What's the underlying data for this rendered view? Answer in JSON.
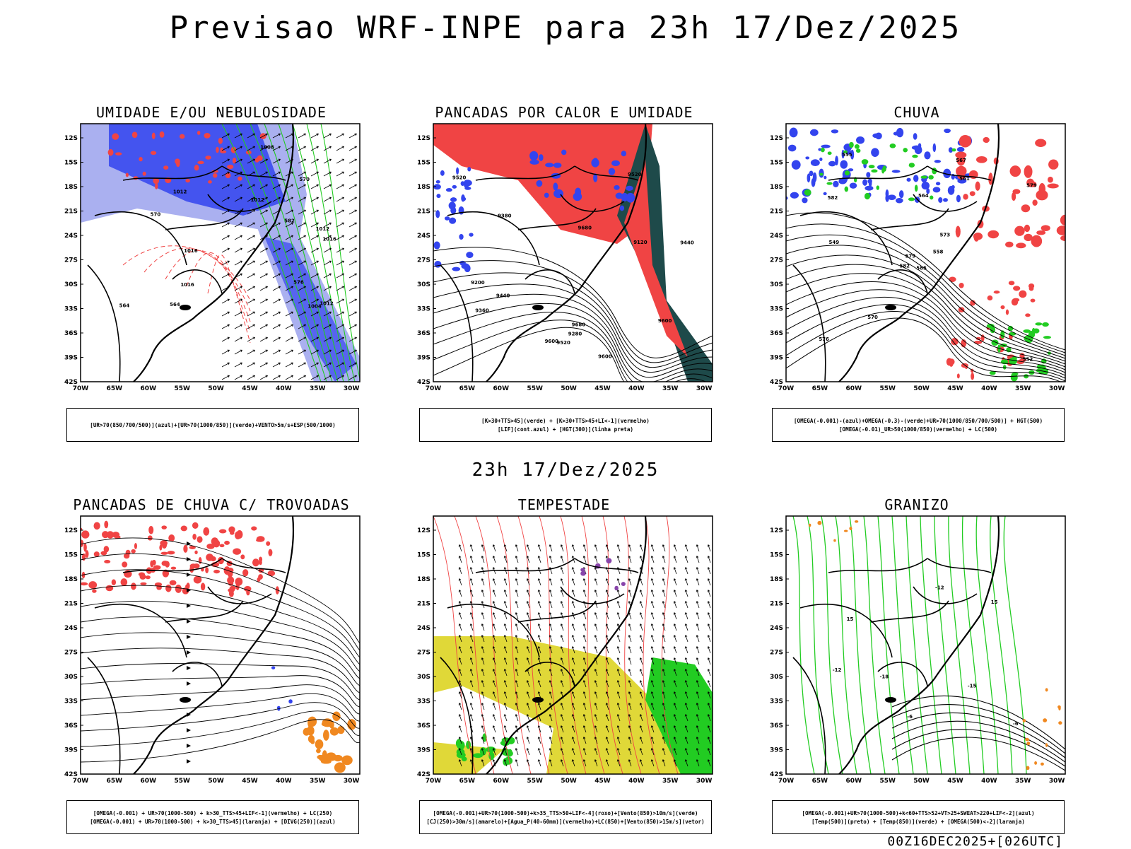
{
  "header": {
    "title": "Previsao WRF-INPE  para 23h 17/Dez/2025"
  },
  "middle_label": "23h 17/Dez/2025",
  "footer": {
    "stamp": "00Z16DEC2025+[026UTC]"
  },
  "axes": {
    "lat_labels": [
      "12S",
      "15S",
      "18S",
      "21S",
      "24S",
      "27S",
      "30S",
      "33S",
      "36S",
      "39S",
      "42S"
    ],
    "lon_labels": [
      "70W",
      "65W",
      "60W",
      "55W",
      "50W",
      "45W",
      "40W",
      "35W",
      "30W"
    ]
  },
  "colors": {
    "blue": "#3344ee",
    "light_blue": "#aab0f0",
    "green": "#22cc22",
    "red": "#f04444",
    "dark_teal": "#1e4a4a",
    "yellow": "#e0d838",
    "orange": "#f08820",
    "purple": "#8844aa"
  },
  "panels": [
    {
      "title": "UMIDADE E/OU NEBULOSIDADE",
      "caption": [
        "[UR>70(850/700/500)](azul)+[UR>70(1000/850)](verde)+VENTO>5m/s+ESP(500/1000)"
      ],
      "labels": [
        "1012",
        "1012",
        "1012",
        "1016",
        "1016",
        "1012",
        "1016",
        "1008",
        "1004",
        "570",
        "570",
        "576",
        "582",
        "564",
        "564"
      ]
    },
    {
      "title": "PANCADAS POR CALOR E UMIDADE",
      "caption": [
        "[K>30+TTS>45](verde) + [K>30+TTS>45+LI<-1](vermelho)",
        "[LIF](cont.azul) + [HGT(300)](linha preta)"
      ],
      "labels": [
        "9600",
        "9680",
        "9680",
        "9520",
        "9440",
        "9360",
        "9280",
        "9200",
        "9120",
        "9380",
        "9440",
        "9600",
        "9520",
        "9600",
        "9520"
      ]
    },
    {
      "title": "CHUVA",
      "caption": [
        "[OMEGA(-0.001)-(azul)+OMEGA(-0.3)-(verde)+UR>70(1000/850/700/500)] + HGT(500)",
        "[OMEGA(-0.01)_UR>50(1000/850)(vermelho) + LC(500)"
      ],
      "labels": [
        "585",
        "582",
        "579",
        "576",
        "573",
        "570",
        "567",
        "564",
        "561",
        "558",
        "555",
        "552",
        "549",
        "579",
        "582"
      ]
    },
    {
      "title": "PANCADAS DE CHUVA C/ TROVOADAS",
      "caption": [
        "[OMEGA(-0.001) + UR>70(1000-500) + k>30_TTS>45+LIF<-1](vermelho) + LC(250)",
        "[OMEGA(-0.001) + UR>70(1000-500) + k>30_TTS>45](laranja) + [DIVG(250)](azul)"
      ],
      "labels": []
    },
    {
      "title": "TEMPESTADE",
      "caption": [
        "[OMEGA(-0.001)+UR>70(1000-500)+k>35_TTS>50+LIF<-4](roxo)+[Vento(850)>10m/s](verde)",
        "[CJ(250)>30m/s](amarelo)+[Agua_P(40-60mm)](vermelho)+LC(850)+[Vento(850)>15m/s](vetor)"
      ],
      "labels": []
    },
    {
      "title": "GRANIZO",
      "caption": [
        "[OMEGA(-0.001)+UR>70(1000-500)+k<60+TTS>52+VT>25+SWEAT>220+LIF<-2](azul)",
        "[Temp(500)](preto) + [Temp(850)](verde) + [OMEGA(500)<-2](laranja)"
      ],
      "labels": [
        "-12",
        "-15",
        "-18",
        "-12",
        "15",
        "-6",
        "15",
        "-6"
      ]
    }
  ]
}
